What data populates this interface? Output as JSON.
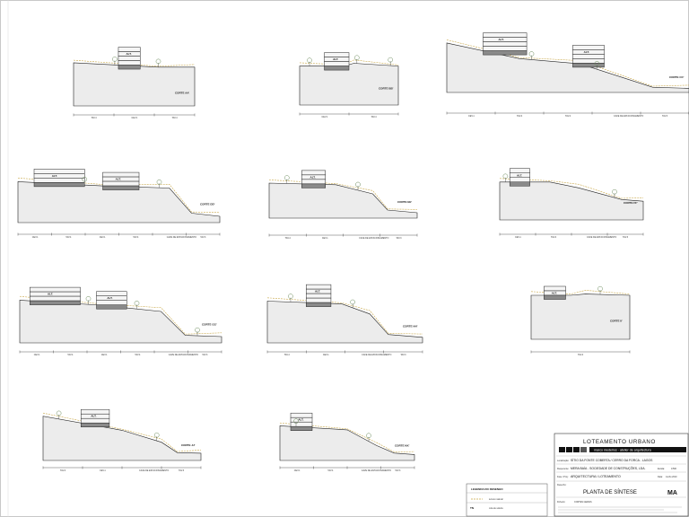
{
  "sections": [
    {
      "id": "cs1",
      "label": "CORTE AA'",
      "stations": [
        "TAV.4",
        "CEV.1",
        "TAV.4"
      ]
    },
    {
      "id": "cs2",
      "label": "CORTE BB'",
      "stations": [
        "CEV.1",
        "TAV.4"
      ]
    },
    {
      "id": "cs3",
      "label": "CORTE CC'",
      "stations": [
        "CEV.1",
        "TAV.4",
        "TAV.4",
        "CAVE DE ESTACIONAMENTO",
        "TAV.3"
      ]
    },
    {
      "id": "cs4",
      "label": "CORTE DD'",
      "stations": [
        "CEV.1",
        "TAV.4",
        "CEV.1",
        "TAV.4",
        "CAVE DE ESTACIONAMENTO",
        "TAV.3"
      ]
    },
    {
      "id": "cs5",
      "label": "CORTE EE'",
      "stations": [
        "TAV.4",
        "CEV.1",
        "CAVE DE ESTACIONAMENTO",
        "TAV.3"
      ]
    },
    {
      "id": "cs6",
      "label": "CORTE FF'",
      "stations": [
        "CEV.1",
        "TAV.4",
        "CAVE DE ESTACIONAMENTO",
        "TAV.3"
      ]
    },
    {
      "id": "cs7",
      "label": "CORTE GG'",
      "stations": [
        "CEV.1",
        "TAV.4",
        "CEV.1",
        "TAV.4",
        "CAVE DE ESTACIONAMENTO",
        "TAV.3"
      ]
    },
    {
      "id": "cs8",
      "label": "CORTE HH'",
      "stations": [
        "TAV.4",
        "CEV.1",
        "CAVE DE ESTACIONAMENTO",
        "TAV.3"
      ]
    },
    {
      "id": "cs9",
      "label": "CORTE II'",
      "stations": [
        "TAV.4"
      ]
    },
    {
      "id": "cs10",
      "label": "CORTE JJ'",
      "stations": [
        "TAV.4",
        "CEV.1",
        "CAVE DE ESTACIONAMENTO",
        "TAV.3"
      ]
    },
    {
      "id": "cs11",
      "label": "CORTE KK'",
      "stations": [
        "CEV.1",
        "TAV.4",
        "CAVE DE ESTACIONAMENTO",
        "TAV.3"
      ]
    }
  ],
  "floor_label": "ALT.",
  "legend": {
    "title": "LEGENDA DO DESENHO",
    "items": [
      {
        "symbol": "dash-line",
        "label": "terreno natural"
      },
      {
        "symbol": "TN",
        "label": "cota de soleira"
      }
    ]
  },
  "title_block": {
    "project_title": "LOTEAMENTO URBANO",
    "firm_tagline": "marco medeiros · atelier de arquitectura",
    "location_label": "Localização:",
    "location": "SÍTIO DA FONTE COBERTA / CERRO DA FORCA - LAGOS",
    "requerente_label": "Requerente:",
    "requerente": "MERA BAÍA - SOCIEDADE DE CONSTRUÇÕES, LDA.",
    "fase_label": "Fase / Proj.:",
    "fase": "ARQUITECTURA / LOTEAMENTO",
    "escala_label": "Escala:",
    "escala": "1/500",
    "data_label": "Data:",
    "data": "Junho 2010",
    "desenho_label": "Desenho:",
    "desenho": "PLANTA DE SÍNTESE",
    "ficheiro_label": "Ficheiro:",
    "ficheiro": "CORTES GERAIS",
    "sheet_code": "MA"
  },
  "colors": {
    "ground_fill": "#ececec",
    "building_dark": "#8a8a8a",
    "building_light": "#f5f5f5",
    "line": "#222222",
    "terrain_dash": "#c9a84a",
    "tree": "#6a8a5a"
  }
}
